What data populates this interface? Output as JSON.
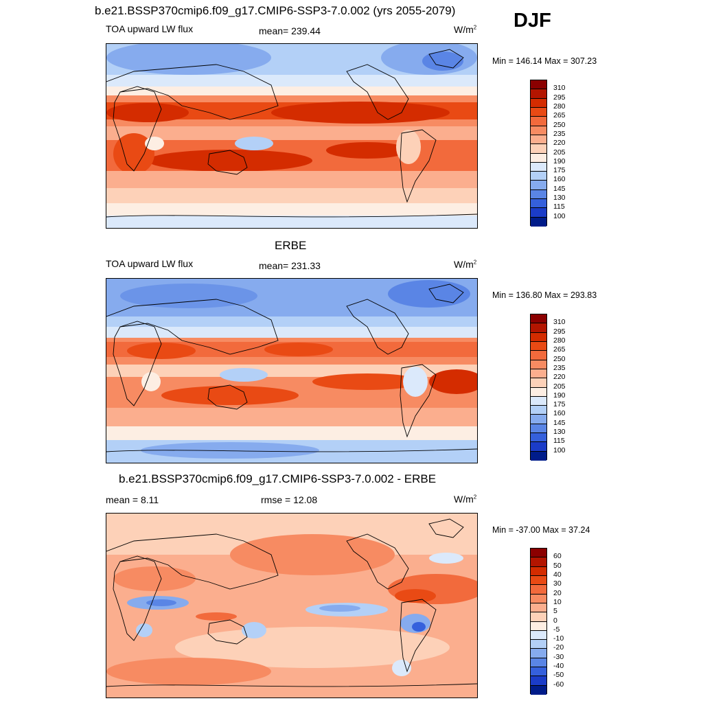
{
  "season": "DJF",
  "panels": [
    {
      "id": "model",
      "title": "b.e21.BSSP370cmip6.f09_g17.CMIP6-SSP3-7.0.002 (yrs 2055-2079)",
      "left_label": "TOA upward LW flux",
      "center_label": "mean= 239.44",
      "units": "W/m",
      "units_sup": "2",
      "minmax": "Min = 146.14 Max = 307.23",
      "colorbar_ticks": [
        "310",
        "295",
        "280",
        "265",
        "250",
        "235",
        "220",
        "205",
        "190",
        "175",
        "160",
        "145",
        "130",
        "115",
        "100"
      ],
      "colorbar_colors": [
        "#8b0000",
        "#b31500",
        "#d42c00",
        "#e94a14",
        "#f26a3c",
        "#f78b62",
        "#fbae8e",
        "#fdd1b8",
        "#fdeee3",
        "#dbe9fb",
        "#b3d0f7",
        "#86abee",
        "#5a85e5",
        "#3560dc",
        "#1b3cc8",
        "#001c8a"
      ]
    },
    {
      "id": "obs",
      "title": "ERBE",
      "left_label": "TOA upward LW flux",
      "center_label": "mean= 231.33",
      "units": "W/m",
      "units_sup": "2",
      "minmax": "Min = 136.80 Max = 293.83",
      "colorbar_ticks": [
        "310",
        "295",
        "280",
        "265",
        "250",
        "235",
        "220",
        "205",
        "190",
        "175",
        "160",
        "145",
        "130",
        "115",
        "100"
      ],
      "colorbar_colors": [
        "#8b0000",
        "#b31500",
        "#d42c00",
        "#e94a14",
        "#f26a3c",
        "#f78b62",
        "#fbae8e",
        "#fdd1b8",
        "#fdeee3",
        "#dbe9fb",
        "#b3d0f7",
        "#86abee",
        "#5a85e5",
        "#3560dc",
        "#1b3cc8",
        "#001c8a"
      ]
    },
    {
      "id": "diff",
      "title": "b.e21.BSSP370cmip6.f09_g17.CMIP6-SSP3-7.0.002 - ERBE",
      "left_label": "mean =   8.11",
      "center_label": "rmse =  12.08",
      "units": "W/m",
      "units_sup": "2",
      "minmax": "Min = -37.00 Max =  37.24",
      "colorbar_ticks": [
        "60",
        "50",
        "40",
        "30",
        "20",
        "10",
        "5",
        "0",
        "-5",
        "-10",
        "-20",
        "-30",
        "-40",
        "-50",
        "-60"
      ],
      "colorbar_colors": [
        "#8b0000",
        "#b31500",
        "#d42c00",
        "#e94a14",
        "#f26a3c",
        "#f78b62",
        "#fbae8e",
        "#fdd1b8",
        "#fdeee3",
        "#dbe9fb",
        "#b3d0f7",
        "#86abee",
        "#5a85e5",
        "#3560dc",
        "#1b3cc8",
        "#001c8a"
      ]
    }
  ]
}
